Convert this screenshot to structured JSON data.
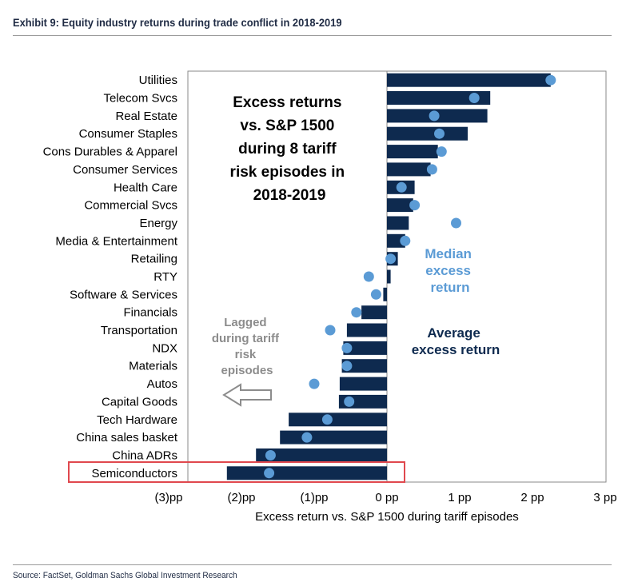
{
  "header": {
    "title": "Exhibit 9: Equity industry returns during trade conflict in 2018-2019"
  },
  "footer": {
    "source": "Source: FactSet, Goldman Sachs Global Investment Research"
  },
  "annotations": {
    "headline": [
      "Excess returns",
      "vs. S&P 1500",
      "during 8 tariff",
      "risk episodes in",
      "2018-2019"
    ],
    "median": [
      "Median",
      "excess",
      "return"
    ],
    "average": [
      "Average",
      "excess return"
    ],
    "lagged": [
      "Lagged",
      "during tariff",
      "risk",
      "episodes"
    ],
    "highlight": "Semiconductors"
  },
  "colors": {
    "bar": "#0e2a4f",
    "dot": "#5b9bd5",
    "highlight": "#e0484e",
    "lagged_arrow": "#8c8c8c"
  },
  "chart_data": {
    "type": "bar",
    "orientation": "horizontal",
    "xlabel": "Excess return vs. S&P 1500 during tariff episodes",
    "xlim": [
      -3,
      3
    ],
    "xticks": [
      -3,
      -2,
      -1,
      0,
      1,
      2,
      3
    ],
    "xtick_labels": [
      "(3)pp",
      "(2)pp",
      "(1)pp",
      "0 pp",
      "1 pp",
      "2 pp",
      "3 pp"
    ],
    "categories": [
      "Utilities",
      "Telecom Svcs",
      "Real Estate",
      "Consumer Staples",
      "Cons Durables & Apparel",
      "Consumer Services",
      "Health Care",
      "Commercial Svcs",
      "Energy",
      "Media & Entertainment",
      "Retailing",
      "RTY",
      "Software & Services",
      "Financials",
      "Transportation",
      "NDX",
      "Materials",
      "Autos",
      "Capital Goods",
      "Tech Hardware",
      "China sales basket",
      "China ADRs",
      "Semiconductors"
    ],
    "series": [
      {
        "name": "Average excess return",
        "marker": "bar",
        "values": [
          2.25,
          1.42,
          1.38,
          1.11,
          0.7,
          0.6,
          0.38,
          0.36,
          0.3,
          0.25,
          0.15,
          0.05,
          -0.05,
          -0.35,
          -0.55,
          -0.6,
          -0.62,
          -0.65,
          -0.66,
          -1.35,
          -1.47,
          -1.8,
          -2.2
        ]
      },
      {
        "name": "Median excess return",
        "marker": "dot",
        "values": [
          2.25,
          1.2,
          0.65,
          0.72,
          0.75,
          0.62,
          0.2,
          0.38,
          0.95,
          0.25,
          0.05,
          -0.25,
          -0.15,
          -0.42,
          -0.78,
          -0.55,
          -0.55,
          -1.0,
          -0.52,
          -0.82,
          -1.1,
          -1.6,
          -1.62
        ]
      }
    ],
    "highlight_category": "Semiconductors"
  }
}
